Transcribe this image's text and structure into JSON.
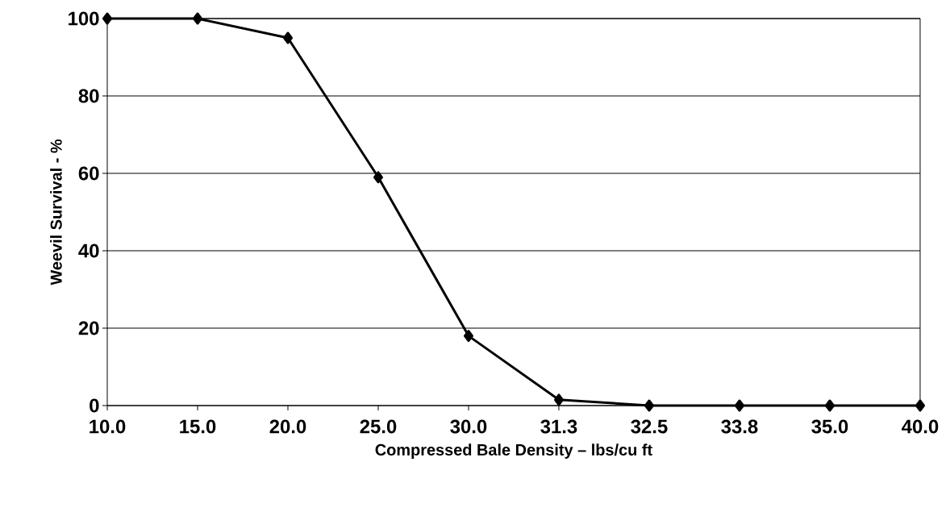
{
  "chart_data": {
    "type": "line",
    "xlabel": "Compressed Bale Density – lbs/cu ft",
    "ylabel": "Weevil Survival - %",
    "categories": [
      "10.0",
      "15.0",
      "20.0",
      "25.0",
      "30.0",
      "31.3",
      "32.5",
      "33.8",
      "35.0",
      "40.0"
    ],
    "series": [
      {
        "color": "#000000",
        "values": [
          100,
          100,
          95,
          59,
          18,
          1.5,
          0,
          0,
          0,
          0
        ]
      }
    ],
    "ylim": [
      0,
      100
    ],
    "yticks": [
      0,
      20,
      40,
      60,
      80,
      100
    ],
    "grid": "y",
    "marker": "diamond",
    "line_style": "solid"
  }
}
